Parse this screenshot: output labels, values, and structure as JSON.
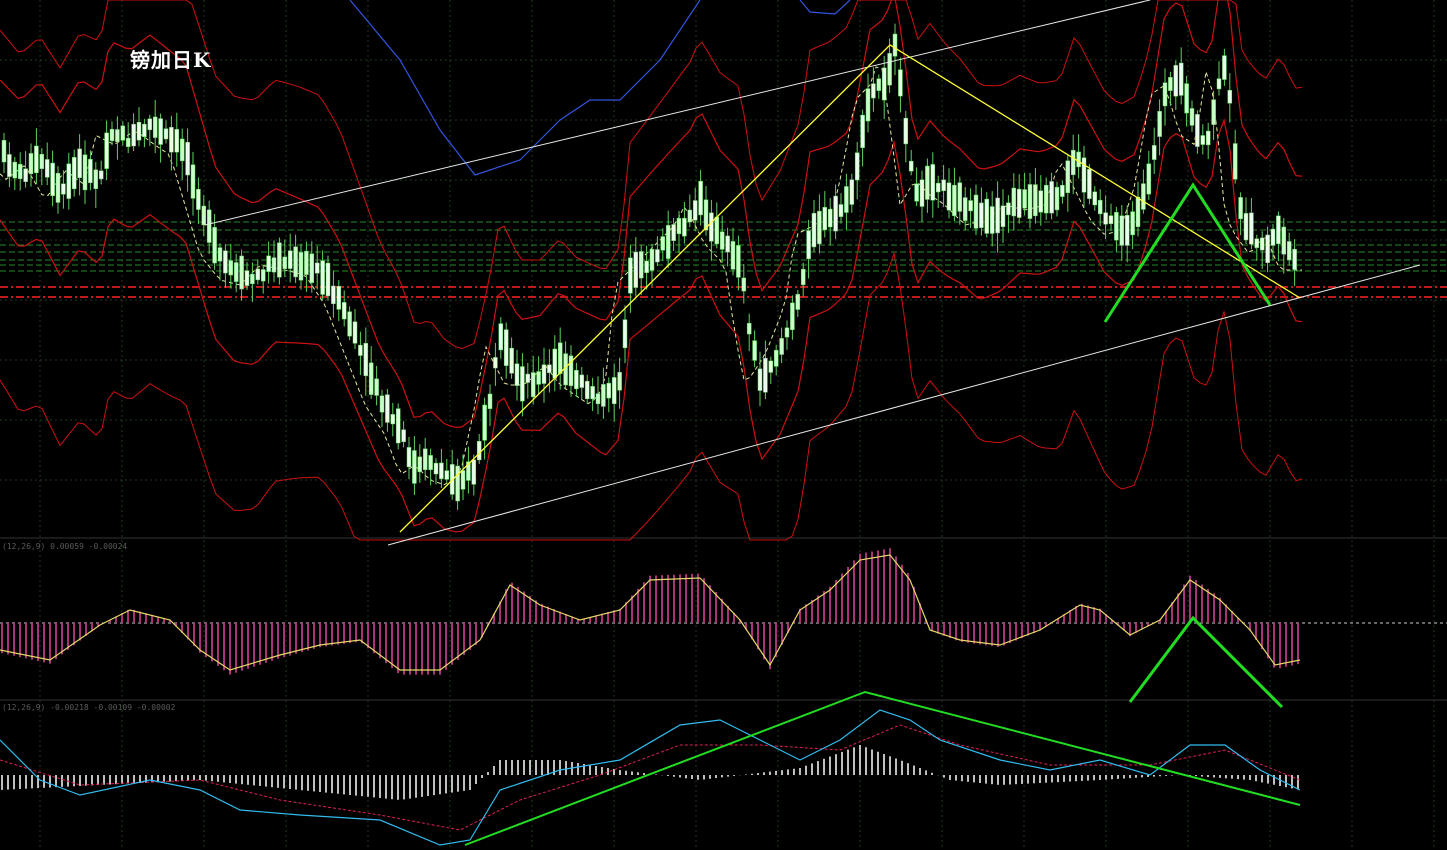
{
  "chart_data": {
    "type": "candlestick",
    "title": "镑加日K",
    "panels": [
      {
        "name": "price",
        "ylim": [
          0,
          1
        ],
        "overlays": [
          "bollinger-bands",
          "moving-average-dashed",
          "support-resistance-lines",
          "trend-channel",
          "zigzag-annotation"
        ]
      },
      {
        "name": "macd-histogram",
        "label": "(12,26,9) 0.00059 -0.00024",
        "ylim": [
          -1,
          1
        ]
      },
      {
        "name": "macd-lines",
        "label": "(12,26,9) -0.00218 -0.00109 -0.00002",
        "ylim": [
          -1,
          1
        ]
      }
    ],
    "colors": {
      "background": "#000000",
      "grid": "#1c3a1c",
      "candle": "#c8ffc8",
      "wick": "#5fd35f",
      "bollinger": "#cc1111",
      "ma_dashed": "#e8e8a0",
      "channel": "#e8e8e8",
      "zigzag": "#ffff33",
      "pattern": "#22dd22",
      "support_green": "#2a8a2a",
      "support_red": "#ff2222",
      "macd_line": "#e8d96a",
      "hist_pos": "#aa3377",
      "hist_neg": "#aa3377",
      "diff_line": "#33bbee",
      "dea_line": "#dd2255",
      "white_hist": "#ffffff",
      "blue_line": "#3355dd"
    },
    "grid": true
  }
}
